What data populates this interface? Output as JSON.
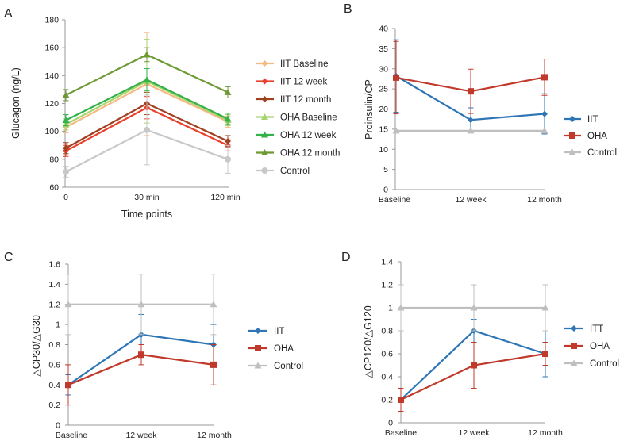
{
  "colors": {
    "iit": "#2E75B6",
    "oha": "#C0392B",
    "control": "#BFBFBF",
    "iit_baseline": "#F5B982",
    "iit_12week": "#E8412C",
    "iit_12month": "#A0401F",
    "oha_baseline": "#A6D46E",
    "oha_12week": "#33B24A",
    "oha_12month": "#6E9A36",
    "control_gray": "#C8C8C8"
  },
  "chart_data": [
    {
      "panel": "A",
      "type": "line",
      "title": "",
      "xlabel": "Time points",
      "ylabel": "Glucagon (ng/L)",
      "categories": [
        "0",
        "30 min",
        "120 min"
      ],
      "ylim": [
        60,
        180
      ],
      "yticks": [
        60,
        80,
        100,
        120,
        140,
        160,
        180
      ],
      "legend_position": "right",
      "series": [
        {
          "name": "IIT Baseline",
          "color_key": "iit_baseline",
          "marker": "diamond",
          "values": [
            103,
            134,
            107
          ],
          "errors": [
            4,
            37,
            4
          ]
        },
        {
          "name": "IIT 12 week",
          "color_key": "iit_12week",
          "marker": "diamond",
          "values": [
            86,
            117,
            90
          ],
          "errors": [
            4,
            8,
            4
          ]
        },
        {
          "name": "IIT 12 month",
          "color_key": "iit_12month",
          "marker": "diamond",
          "values": [
            88,
            120,
            93
          ],
          "errors": [
            4,
            8,
            4
          ]
        },
        {
          "name": "OHA Baseline",
          "color_key": "oha_baseline",
          "marker": "triangle",
          "values": [
            105,
            136,
            108
          ],
          "errors": [
            4,
            30,
            4
          ]
        },
        {
          "name": "OHA 12 week",
          "color_key": "oha_12week",
          "marker": "triangle",
          "values": [
            108,
            137,
            109
          ],
          "errors": [
            4,
            8,
            4
          ]
        },
        {
          "name": "OHA 12 month",
          "color_key": "oha_12month",
          "marker": "triangle",
          "values": [
            126,
            155,
            128
          ],
          "errors": [
            4,
            5,
            4
          ]
        },
        {
          "name": "Control",
          "color_key": "control_gray",
          "marker": "circle",
          "values": [
            71,
            101,
            80
          ],
          "errors": [
            4,
            25,
            10
          ]
        }
      ]
    },
    {
      "panel": "B",
      "type": "line",
      "title": "",
      "xlabel": "",
      "ylabel": "Proinsulin/CP",
      "categories": [
        "Baseline",
        "12 week",
        "12 month"
      ],
      "ylim": [
        0,
        40
      ],
      "yticks": [
        0,
        5,
        10,
        15,
        20,
        25,
        30,
        35,
        40
      ],
      "legend_position": "right",
      "series": [
        {
          "name": "IIT",
          "color_key": "iit",
          "marker": "diamond",
          "values": [
            28.2,
            17.3,
            18.8
          ],
          "errors": [
            9,
            3,
            5
          ]
        },
        {
          "name": "OHA",
          "color_key": "oha",
          "marker": "square",
          "values": [
            27.8,
            24.4,
            27.9
          ],
          "errors": [
            9,
            5.5,
            4.5
          ]
        },
        {
          "name": "Control",
          "color_key": "control",
          "marker": "triangle",
          "values": [
            14.6,
            14.6,
            14.6
          ],
          "errors": [
            0,
            0,
            0
          ]
        }
      ]
    },
    {
      "panel": "C",
      "type": "line",
      "title": "",
      "xlabel": "",
      "ylabel": "△CP30/△G30",
      "categories": [
        "Baseline",
        "12 week",
        "12 month"
      ],
      "ylim": [
        0,
        1.6
      ],
      "yticks": [
        0,
        0.2,
        0.4,
        0.6,
        0.8,
        1,
        1.2,
        1.4,
        1.6
      ],
      "legend_position": "right",
      "series": [
        {
          "name": "IIT",
          "color_key": "iit",
          "marker": "diamond",
          "values": [
            0.4,
            0.9,
            0.8
          ],
          "errors": [
            0.1,
            0.2,
            0.2
          ]
        },
        {
          "name": "OHA",
          "color_key": "oha",
          "marker": "square",
          "values": [
            0.4,
            0.7,
            0.6
          ],
          "errors": [
            0.2,
            0.1,
            0.2
          ]
        },
        {
          "name": "Control",
          "color_key": "control",
          "marker": "triangle",
          "values": [
            1.2,
            1.2,
            1.2
          ],
          "errors": [
            0.3,
            0.3,
            0.3
          ]
        }
      ]
    },
    {
      "panel": "D",
      "type": "line",
      "title": "",
      "xlabel": "",
      "ylabel": "△CP120/△G120",
      "categories": [
        "Baseline",
        "12 week",
        "12 month"
      ],
      "ylim": [
        0,
        1.4
      ],
      "yticks": [
        0,
        0.2,
        0.4,
        0.6,
        0.8,
        1,
        1.2,
        1.4
      ],
      "legend_position": "right",
      "series": [
        {
          "name": "ITT",
          "color_key": "iit",
          "marker": "diamond",
          "values": [
            0.2,
            0.8,
            0.6
          ],
          "errors": [
            0.1,
            0.1,
            0.2
          ]
        },
        {
          "name": "OHA",
          "color_key": "oha",
          "marker": "square",
          "values": [
            0.2,
            0.5,
            0.6
          ],
          "errors": [
            0.1,
            0.2,
            0.1
          ]
        },
        {
          "name": "Control",
          "color_key": "control",
          "marker": "triangle",
          "values": [
            1,
            1,
            1
          ],
          "errors": [
            0.2,
            0.2,
            0.2
          ]
        }
      ]
    }
  ]
}
